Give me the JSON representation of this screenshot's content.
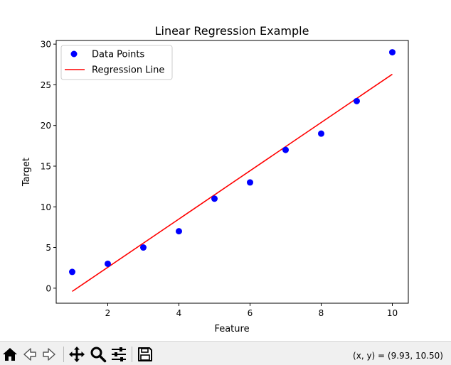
{
  "chart_data": {
    "type": "scatter",
    "title": "Linear Regression Example",
    "xlabel": "Feature",
    "ylabel": "Target",
    "xlim": [
      0.55,
      10.45
    ],
    "ylim": [
      -1.85,
      30.45
    ],
    "xticks": [
      2,
      4,
      6,
      8,
      10
    ],
    "yticks": [
      0,
      5,
      10,
      15,
      20,
      25,
      30
    ],
    "grid": false,
    "legend_position": "upper-left",
    "series": [
      {
        "name": "Data Points",
        "kind": "scatter",
        "color": "#0000ff",
        "x": [
          1,
          2,
          3,
          4,
          5,
          6,
          7,
          8,
          9,
          10
        ],
        "y": [
          2,
          3,
          5,
          7,
          11,
          13,
          17,
          19,
          23,
          29
        ]
      },
      {
        "name": "Regression Line",
        "kind": "line",
        "color": "#ff0000",
        "x": [
          1,
          10
        ],
        "y": [
          -0.4,
          26.3
        ]
      }
    ]
  },
  "toolbar": {
    "icons": [
      "home-icon",
      "back-arrow-icon",
      "forward-arrow-icon",
      "pan-icon",
      "zoom-icon",
      "configure-subplots-icon",
      "save-icon"
    ],
    "coord_readout": "(x, y) = (9.93, 10.50)"
  }
}
